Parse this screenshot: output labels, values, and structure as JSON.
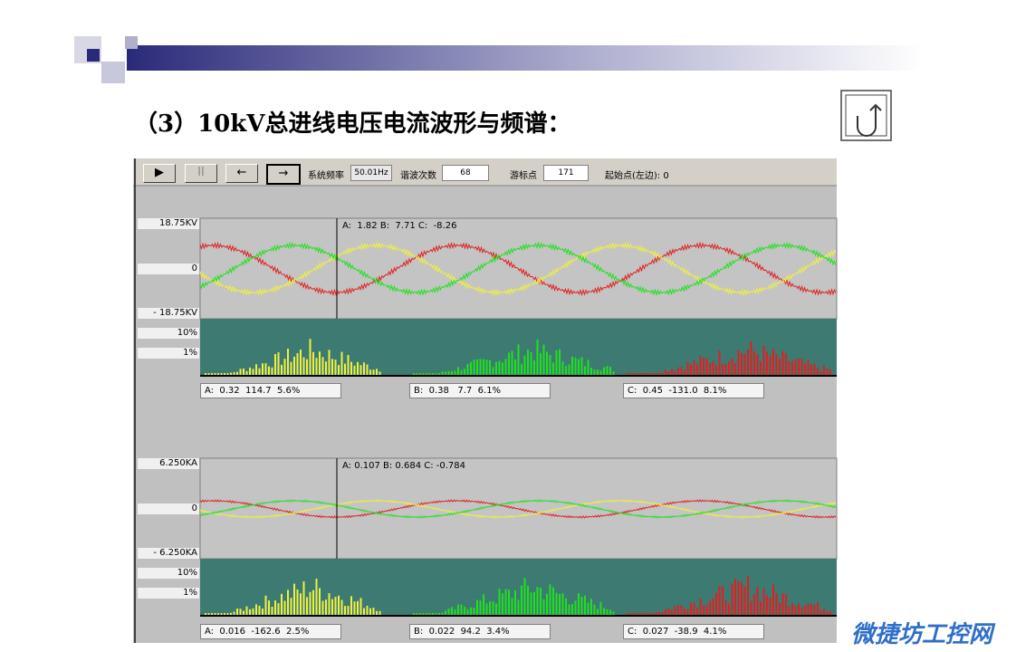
{
  "header": {
    "title": "（3）10kV总进线电压电流波形与频谱："
  },
  "toolbar": {
    "freq_label": "系统频率",
    "freq_value": "50.01Hz",
    "harmonic_label": "谐波次数",
    "harmonic_value": "68",
    "cursor_label": "游标点",
    "cursor_value": "171",
    "start_label": "起始点(左边): 0"
  },
  "panels": [
    {
      "axis_top": "18.75KV",
      "axis_zero": "0",
      "axis_bottom": "- 18.75KV",
      "spec_high": "10%",
      "spec_low": "1%",
      "cursor_readout": "A:  1.82 B:  7.71 C:  -8.26",
      "phases": [
        "A:  0.32  114.7  5.6%",
        "B:  0.38   7.7  6.1%",
        "C:  0.45  -131.0  8.1%"
      ]
    },
    {
      "axis_top": "6.250KA",
      "axis_zero": "0",
      "axis_bottom": "- 6.250KA",
      "spec_high": "10%",
      "spec_low": "1%",
      "cursor_readout": "A: 0.107 B: 0.684 C: -0.784",
      "phases": [
        "A:  0.016  -162.6  2.5%",
        "B:  0.022  94.2  3.4%",
        "C:  0.027  -38.9  4.1%"
      ]
    }
  ],
  "watermark": "微捷坊工控网"
}
